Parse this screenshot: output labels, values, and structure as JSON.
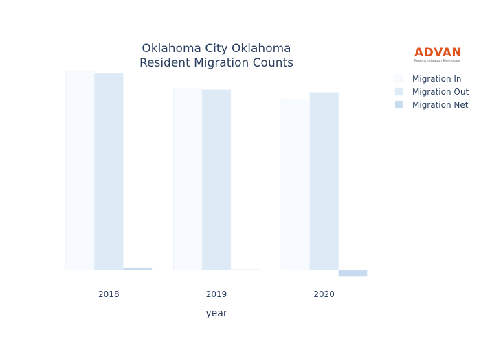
{
  "chart_data": {
    "type": "bar",
    "title_lines": [
      "Oklahoma City Oklahoma",
      "Resident Migration Counts"
    ],
    "xlabel": "year",
    "ylabel": "",
    "categories": [
      "2018",
      "2019",
      "2020"
    ],
    "series": [
      {
        "name": "Migration In",
        "values": [
          4350,
          3950,
          3730
        ],
        "color": "#f7fbff"
      },
      {
        "name": "Migration Out",
        "values": [
          4300,
          3940,
          3880
        ],
        "color": "#deebf7"
      },
      {
        "name": "Migration Net",
        "values": [
          50,
          10,
          -150
        ],
        "color": "#c6dbef"
      }
    ],
    "ylim": [
      -250,
      4400
    ],
    "grid": false,
    "legend_position": "right"
  },
  "logo": {
    "name": "ADVAN",
    "tagline": "Research through Technology"
  }
}
